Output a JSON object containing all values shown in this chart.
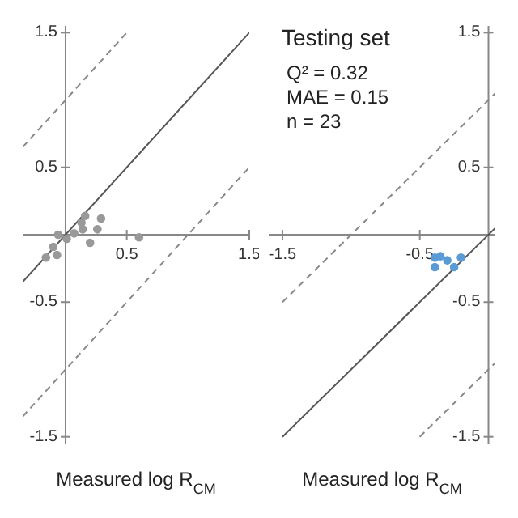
{
  "chart_data": [
    {
      "type": "scatter",
      "xlabel": "Measured log R$_{CM}$",
      "xlim": [
        -0.35,
        1.5
      ],
      "ylim": [
        -1.55,
        1.55
      ],
      "xticks": [
        0.5,
        1.5
      ],
      "yticks": [
        -1.5,
        -0.5,
        0.5,
        1.5
      ],
      "series": [
        {
          "type": "line",
          "color": "#555555",
          "line_style": "solid",
          "x": [
            -0.35,
            1.5
          ],
          "values": [
            -0.35,
            1.5
          ]
        },
        {
          "type": "line",
          "color": "#888888",
          "line_style": "dashed",
          "x": [
            -0.35,
            0.5
          ],
          "values": [
            0.65,
            1.5
          ]
        },
        {
          "type": "line",
          "color": "#888888",
          "line_style": "dashed",
          "x": [
            -0.35,
            1.5
          ],
          "values": [
            -1.35,
            0.5
          ]
        },
        {
          "marker": "circle",
          "color": "#999999",
          "x": [
            -0.16,
            -0.1,
            -0.07,
            -0.06,
            0.01,
            0.07,
            0.13,
            0.14,
            0.16,
            0.2,
            0.26,
            0.29,
            0.6
          ],
          "values": [
            -0.17,
            -0.09,
            -0.15,
            0.0,
            -0.03,
            0.01,
            0.09,
            0.04,
            0.14,
            -0.06,
            0.04,
            0.12,
            -0.02
          ]
        }
      ]
    },
    {
      "type": "scatter",
      "xlabel": "Measured log R$_{CM}$",
      "annotations": [
        "Testing set",
        "Q² = 0.32",
        "MAE = 0.15",
        "n = 23"
      ],
      "xlim": [
        -1.6,
        0.05
      ],
      "ylim": [
        -1.55,
        1.55
      ],
      "xticks": [
        -1.5,
        -0.5
      ],
      "yticks": [
        -1.5,
        -0.5,
        0.5,
        1.5
      ],
      "series": [
        {
          "type": "line",
          "color": "#555555",
          "line_style": "solid",
          "x": [
            -1.5,
            0.05
          ],
          "values": [
            -1.5,
            0.05
          ]
        },
        {
          "type": "line",
          "color": "#888888",
          "line_style": "dashed",
          "x": [
            -1.5,
            0.05
          ],
          "values": [
            -0.5,
            1.05
          ]
        },
        {
          "type": "line",
          "color": "#888888",
          "line_style": "dashed",
          "x": [
            -0.5,
            0.05
          ],
          "values": [
            -1.5,
            -0.95
          ]
        },
        {
          "marker": "circle",
          "color": "#5b9bd5",
          "x": [
            -0.39,
            -0.35,
            -0.39,
            -0.3,
            -0.25,
            -0.2
          ],
          "values": [
            -0.17,
            -0.16,
            -0.24,
            -0.19,
            -0.24,
            -0.17
          ]
        }
      ]
    }
  ]
}
